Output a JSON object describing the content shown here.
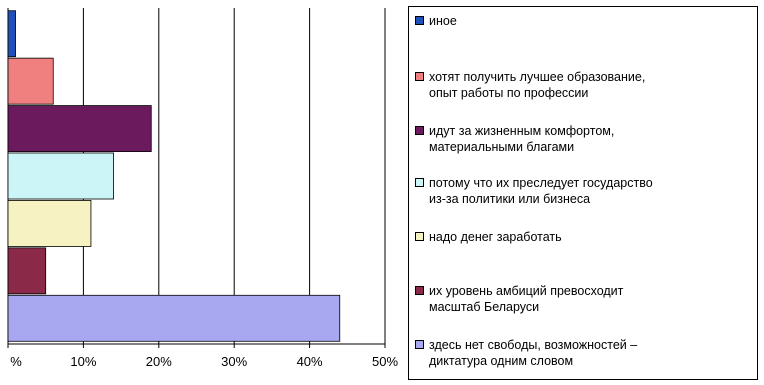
{
  "chart_data": {
    "type": "bar",
    "orientation": "horizontal",
    "categories": [
      "иное",
      "хотят получить лучшее образование, опыт работы по профессии",
      "идут за жизненным комфортом, материальными благами",
      "потому что их преследует государство из-за политики или бизнеса",
      "надо денег заработать",
      "их уровень амбиций превосходит масштаб Беларуси",
      "здесь нет свободы, возможностей – диктатура одним словом"
    ],
    "values": [
      1,
      6,
      19,
      14,
      11,
      5,
      44
    ],
    "unit": "%",
    "xlim": [
      0,
      50
    ],
    "xticks": [
      "%",
      "10%",
      "20%",
      "30%",
      "40%",
      "50%"
    ],
    "grid": true,
    "legend_position": "right",
    "colors": [
      "#1f4fb8",
      "#f08080",
      "#6b1a5e",
      "#ccf5f8",
      "#f7f2c2",
      "#8a2a48",
      "#a8a8f0"
    ]
  },
  "legend": [
    {
      "lines": [
        "иное"
      ],
      "color": "#1f4fb8"
    },
    {
      "lines": [
        "хотят получить лучшее образование,",
        "опыт работы по профессии"
      ],
      "color": "#f08080"
    },
    {
      "lines": [
        "идут за жизненным комфортом,",
        "материальными благами"
      ],
      "color": "#6b1a5e"
    },
    {
      "lines": [
        "потому что их преследует государство",
        "из-за политики или бизнеса"
      ],
      "color": "#ccf5f8"
    },
    {
      "lines": [
        "надо денег заработать"
      ],
      "color": "#f7f2c2"
    },
    {
      "lines": [
        "их уровень амбиций превосходит",
        "масштаб Беларуси"
      ],
      "color": "#8a2a48"
    },
    {
      "lines": [
        "здесь нет свободы, возможностей –",
        "диктатура одним словом"
      ],
      "color": "#a8a8f0"
    }
  ]
}
